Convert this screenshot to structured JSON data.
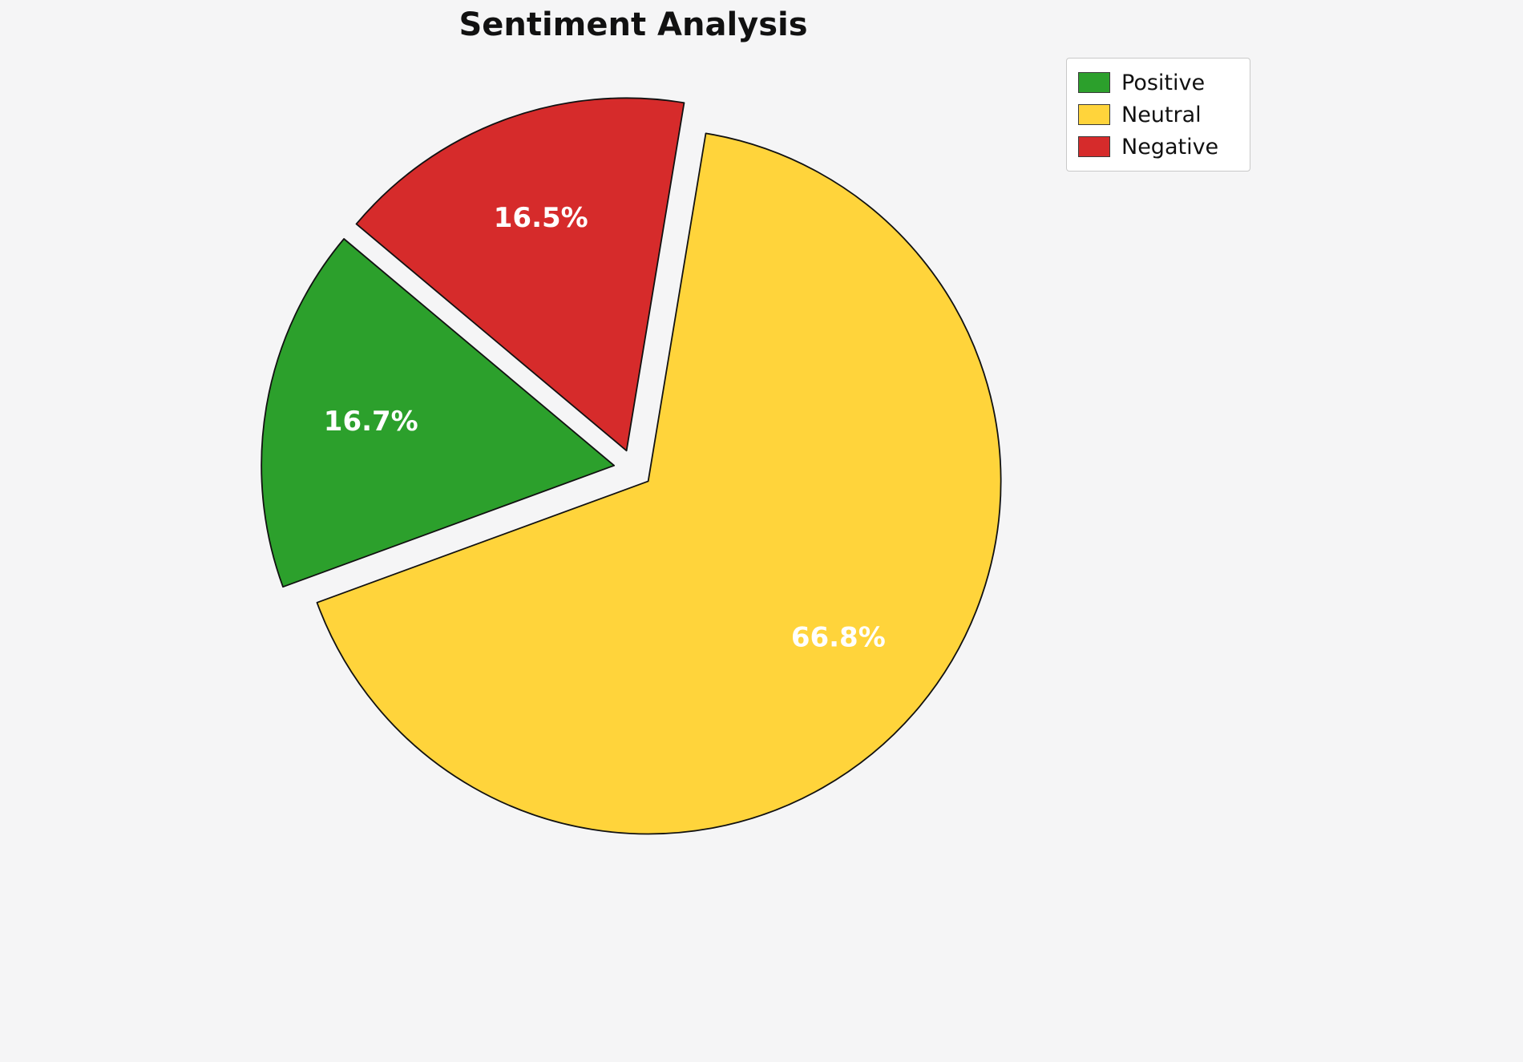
{
  "chart_data": {
    "type": "pie",
    "title": "Sentiment Analysis",
    "slices": [
      {
        "label": "Positive",
        "value": 16.7,
        "pct_label": "16.7%",
        "color": "#2CA02C"
      },
      {
        "label": "Neutral",
        "value": 66.8,
        "pct_label": "66.8%",
        "color": "#FFD43B"
      },
      {
        "label": "Negative",
        "value": 16.5,
        "pct_label": "16.5%",
        "color": "#D62B2B"
      }
    ],
    "start_angle_deg": 140,
    "direction": "counterclockwise",
    "explode_fraction": 0.055,
    "label_distance_fraction": 0.7,
    "legend_position": "upper right",
    "label_color": "#ffffff",
    "edge_color": "#111111",
    "background": "#f5f5f6"
  }
}
